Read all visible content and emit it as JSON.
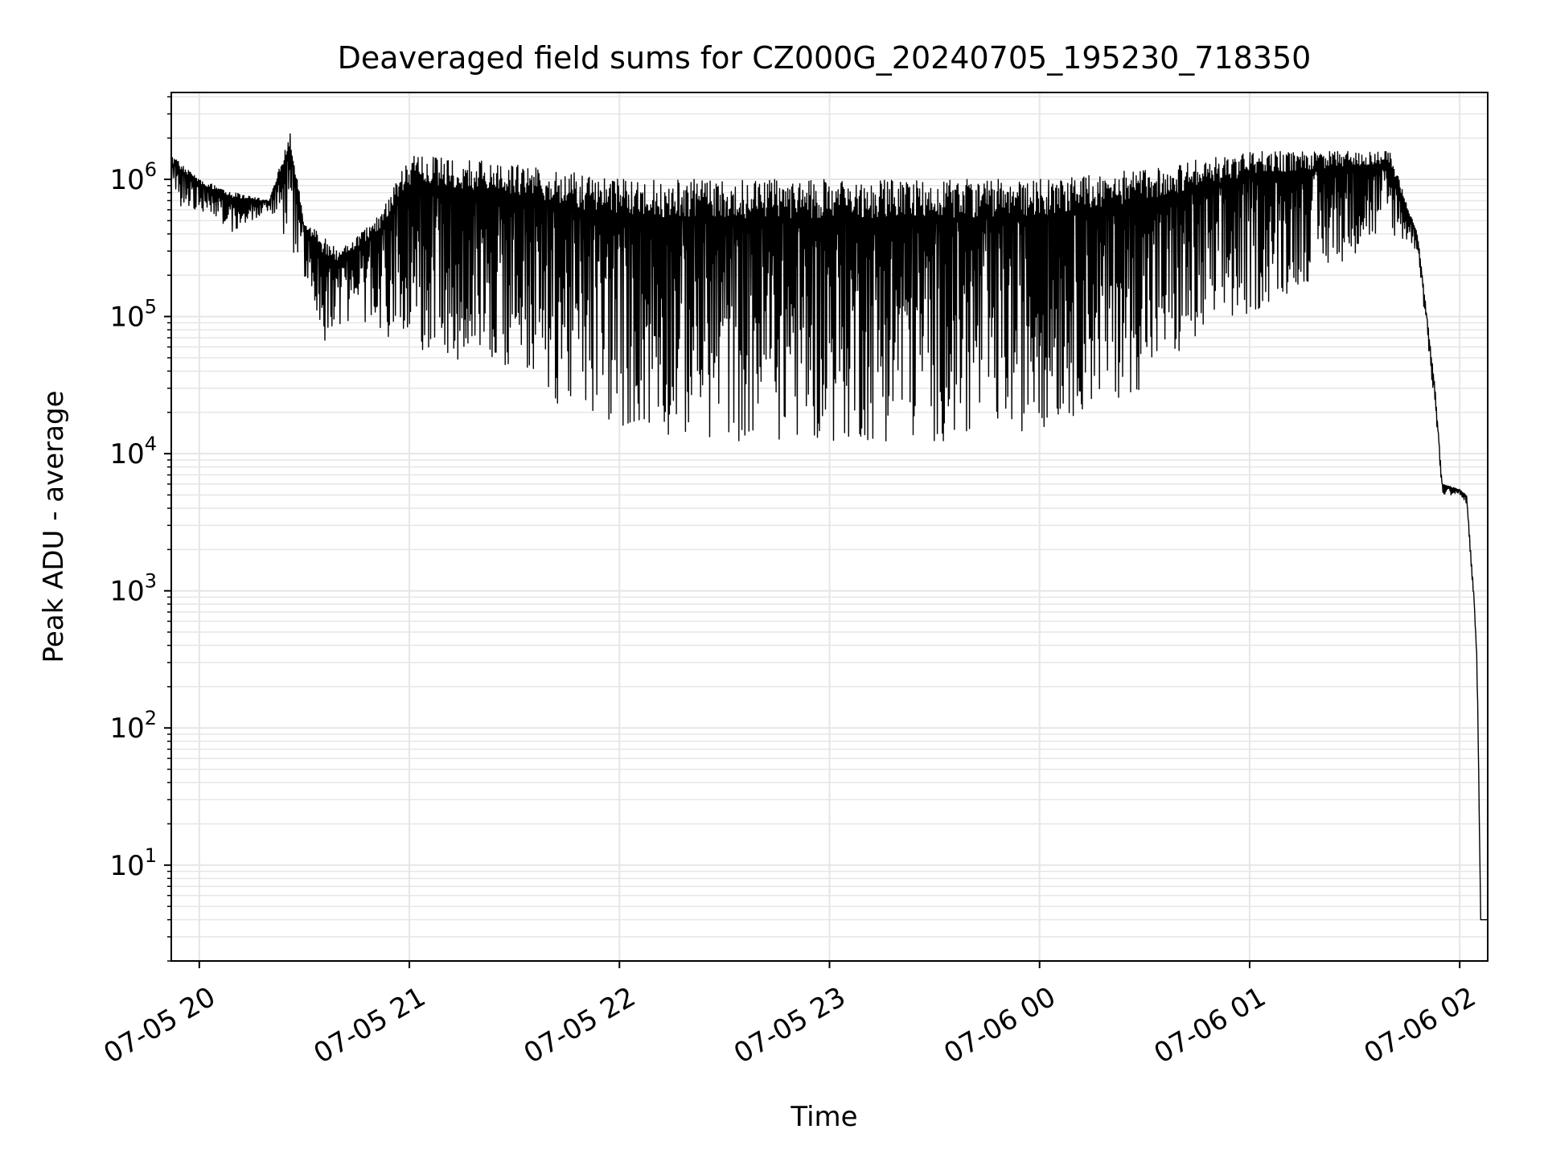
{
  "chart_data": {
    "type": "line",
    "title": "Deaveraged field sums for CZ000G_20240705_195230_718350",
    "xlabel": "Time",
    "ylabel": "Peak ADU - average",
    "yscale": "log",
    "ylim": [
      2,
      4300000
    ],
    "xlim": [
      "2024-07-05 19:52",
      "2024-07-06 02:08"
    ],
    "grid": true,
    "x_ticks": [
      {
        "time": "2024-07-05 20:00",
        "label": "07-05 20"
      },
      {
        "time": "2024-07-05 21:00",
        "label": "07-05 21"
      },
      {
        "time": "2024-07-05 22:00",
        "label": "07-05 22"
      },
      {
        "time": "2024-07-05 23:00",
        "label": "07-05 23"
      },
      {
        "time": "2024-07-06 00:00",
        "label": "07-06 00"
      },
      {
        "time": "2024-07-06 01:00",
        "label": "07-06 01"
      },
      {
        "time": "2024-07-06 02:00",
        "label": "07-06 02"
      }
    ],
    "y_ticks": [
      {
        "value": 10,
        "base": "10",
        "exp": "1"
      },
      {
        "value": 100,
        "base": "10",
        "exp": "2"
      },
      {
        "value": 1000,
        "base": "10",
        "exp": "3"
      },
      {
        "value": 10000,
        "base": "10",
        "exp": "4"
      },
      {
        "value": 100000,
        "base": "10",
        "exp": "5"
      },
      {
        "value": 1000000,
        "base": "10",
        "exp": "6"
      }
    ],
    "line_color": "#000000",
    "grid_color": "#e6e6e6",
    "series": [
      {
        "description_of_shape": "upper envelope",
        "points": [
          [
            "2024-07-05 19:52",
            1500000
          ],
          [
            "2024-07-05 20:00",
            1000000
          ],
          [
            "2024-07-05 20:10",
            800000
          ],
          [
            "2024-07-05 20:20",
            700000
          ],
          [
            "2024-07-05 20:26",
            2200000
          ],
          [
            "2024-07-05 20:30",
            500000
          ],
          [
            "2024-07-05 20:40",
            300000
          ],
          [
            "2024-07-05 20:50",
            500000
          ],
          [
            "2024-07-05 21:00",
            1500000
          ],
          [
            "2024-07-05 21:30",
            1300000
          ],
          [
            "2024-07-05 22:00",
            1000000
          ],
          [
            "2024-07-05 22:30",
            1000000
          ],
          [
            "2024-07-05 23:00",
            1000000
          ],
          [
            "2024-07-05 23:30",
            1000000
          ],
          [
            "2024-07-06 00:00",
            1000000
          ],
          [
            "2024-07-06 00:30",
            1200000
          ],
          [
            "2024-07-06 01:00",
            1600000
          ],
          [
            "2024-07-06 01:20",
            1600000
          ],
          [
            "2024-07-06 01:40",
            1600000
          ],
          [
            "2024-07-06 01:48",
            400000
          ],
          [
            "2024-07-06 01:53",
            30000
          ],
          [
            "2024-07-06 01:55",
            6000
          ],
          [
            "2024-07-06 02:00",
            5500
          ],
          [
            "2024-07-06 02:02",
            5000
          ],
          [
            "2024-07-06 02:04",
            1000
          ],
          [
            "2024-07-06 02:05",
            300
          ],
          [
            "2024-07-06 02:06",
            4
          ]
        ]
      },
      {
        "description_of_shape": "lower envelope",
        "points": [
          [
            "2024-07-05 19:52",
            600000
          ],
          [
            "2024-07-05 20:00",
            600000
          ],
          [
            "2024-07-05 20:10",
            400000
          ],
          [
            "2024-07-05 20:20",
            600000
          ],
          [
            "2024-07-05 20:30",
            200000
          ],
          [
            "2024-07-05 20:35",
            60000
          ],
          [
            "2024-07-05 20:45",
            100000
          ],
          [
            "2024-07-05 21:00",
            50000
          ],
          [
            "2024-07-05 21:30",
            40000
          ],
          [
            "2024-07-05 21:45",
            20000
          ],
          [
            "2024-07-05 22:00",
            15000
          ],
          [
            "2024-07-05 22:30",
            12000
          ],
          [
            "2024-07-05 23:00",
            12000
          ],
          [
            "2024-07-05 23:30",
            12000
          ],
          [
            "2024-07-06 00:00",
            15000
          ],
          [
            "2024-07-06 00:30",
            30000
          ],
          [
            "2024-07-06 01:00",
            100000
          ],
          [
            "2024-07-06 01:20",
            200000
          ],
          [
            "2024-07-06 01:40",
            400000
          ],
          [
            "2024-07-06 01:48",
            300000
          ],
          [
            "2024-07-06 01:53",
            20000
          ],
          [
            "2024-07-06 01:55",
            5000
          ],
          [
            "2024-07-06 02:00",
            5000
          ],
          [
            "2024-07-06 02:02",
            4000
          ],
          [
            "2024-07-06 02:04",
            800
          ],
          [
            "2024-07-06 02:05",
            200
          ],
          [
            "2024-07-06 02:06",
            4
          ]
        ]
      }
    ]
  }
}
